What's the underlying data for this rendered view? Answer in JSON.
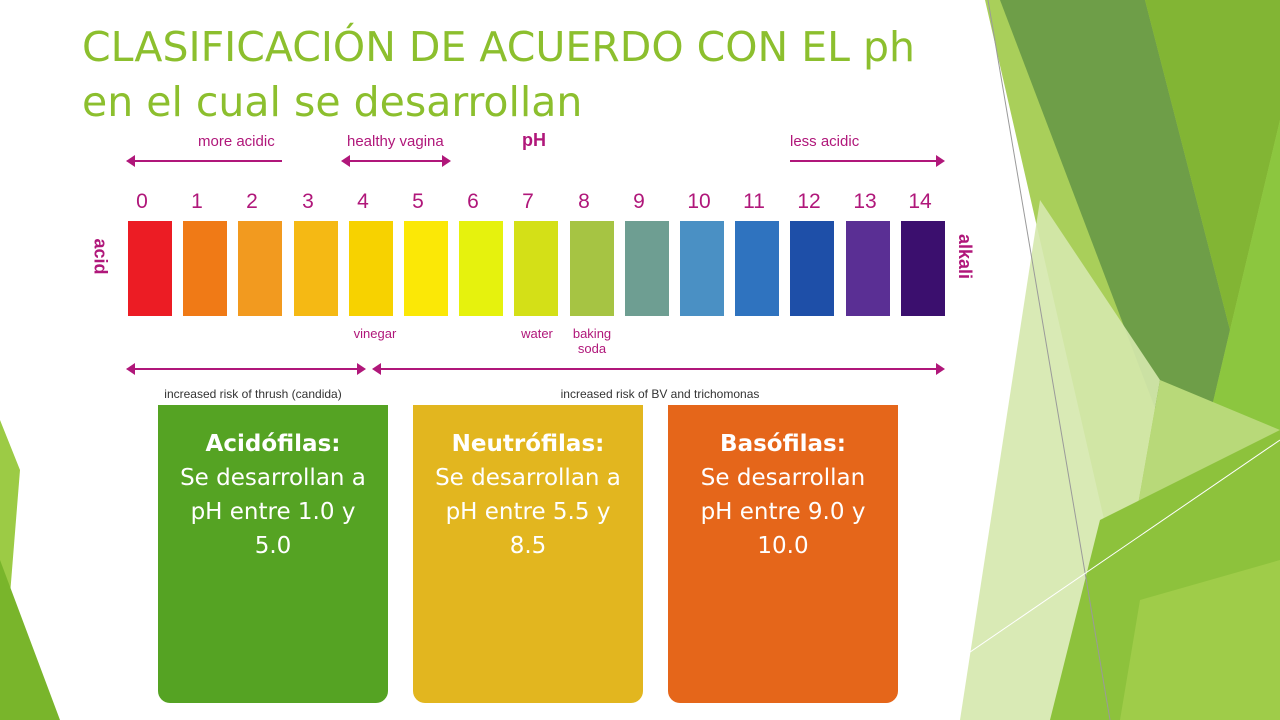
{
  "title": {
    "line1": "CLASIFICACIÓN DE ACUERDO CON EL ph",
    "line2": "en el cual se desarrollan"
  },
  "scale": {
    "ph_label": "pH",
    "more_acidic": "more acidic",
    "healthy_vagina": "healthy vagina",
    "less_acidic": "less acidic",
    "acid": "acid",
    "alkali": "alkali",
    "numbers": [
      "0",
      "1",
      "2",
      "3",
      "4",
      "5",
      "6",
      "7",
      "8",
      "9",
      "10",
      "11",
      "12",
      "13",
      "14"
    ],
    "colors": [
      "#ec1c24",
      "#f07a16",
      "#f29a1f",
      "#f5b914",
      "#f7d200",
      "#fbe806",
      "#e6f20d",
      "#d4e017",
      "#a6c443",
      "#6e9e92",
      "#4a90c4",
      "#2f73bf",
      "#1e4fa8",
      "#5a2f94",
      "#3b0f6e"
    ],
    "vinegar": "vinegar",
    "water": "water",
    "baking_soda": "baking\nsoda",
    "thrush": "increased risk of thrush (candida)",
    "bv": "increased risk of BV and trichomonas"
  },
  "cards": [
    {
      "heading": "Acidófilas:",
      "text": "Se desarrollan a pH entre 1.0 y 5.0",
      "color": "#55a323"
    },
    {
      "heading": "Neutrófilas:",
      "text": "Se desarrollan a pH entre 5.5 y 8.5",
      "color": "#e2b61f"
    },
    {
      "heading": "Basófilas:",
      "text": "Se desarrollan pH entre 9.0 y 10.0",
      "color": "#e5661a"
    }
  ]
}
